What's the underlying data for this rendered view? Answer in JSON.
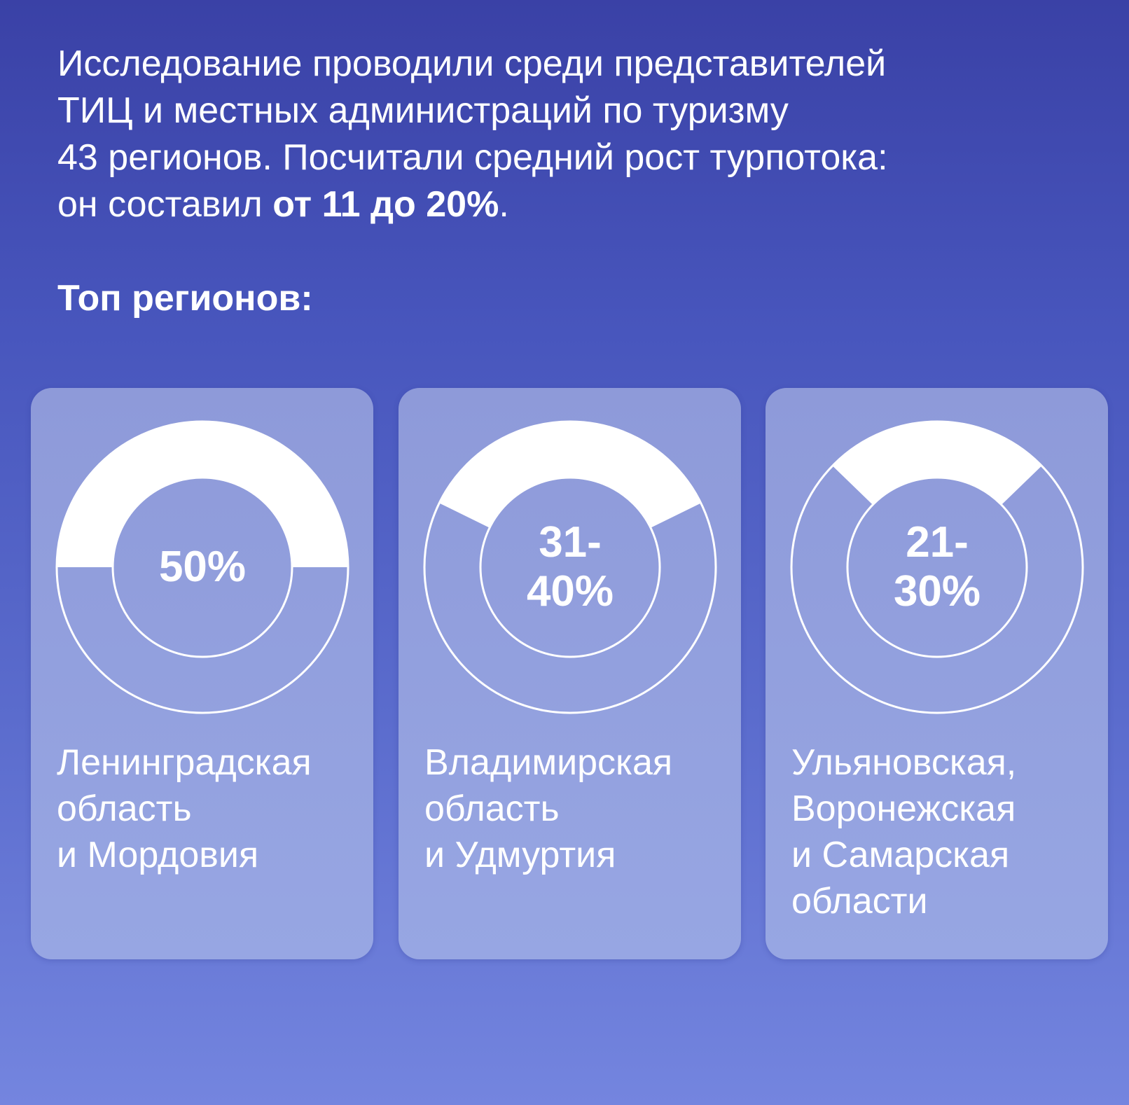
{
  "intro": {
    "lines": [
      "Исследование проводили среди представителей",
      "ТИЦ и местных администраций по туризму",
      "43 регионов. Посчитали средний рост турпотока:"
    ],
    "last_prefix": "он составил ",
    "last_bold": "от 11 до 20%",
    "last_suffix": "."
  },
  "heading": "Топ регионов:",
  "colors": {
    "filled": "#ffffff",
    "ring_stroke": "#ffffff",
    "card": "#919fdd"
  },
  "chart_data": {
    "type": "pie",
    "title": "Топ регионов:",
    "series": [
      {
        "label_lines": [
          "50%"
        ],
        "value_percent": 50,
        "region_lines": [
          "Ленинградская",
          "область",
          "и Мордовия"
        ]
      },
      {
        "label_lines": [
          "31-",
          "40%"
        ],
        "value_percent_range": [
          31,
          40
        ],
        "region_lines": [
          "Владимирская",
          "область",
          "и Удмуртия"
        ]
      },
      {
        "label_lines": [
          "21-",
          "30%"
        ],
        "value_percent_range": [
          21,
          30
        ],
        "region_lines": [
          "Ульяновская,",
          "Воронежская",
          "и Самарская",
          "области"
        ]
      }
    ]
  }
}
